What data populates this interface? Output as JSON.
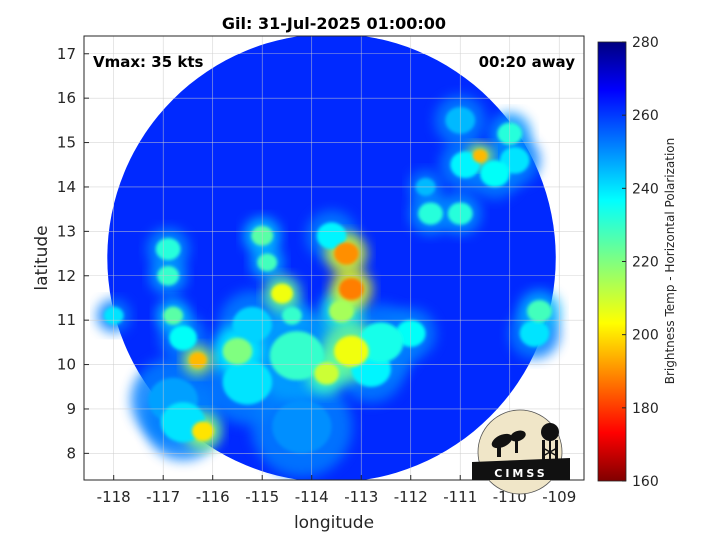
{
  "title": "Gil: 31-Jul-2025 01:00:00",
  "annotations": {
    "vmax": "Vmax: 35 kts",
    "time_away": "00:20 away"
  },
  "axes": {
    "xlabel": "longitude",
    "ylabel": "latitude",
    "xlim": [
      -118.6,
      -108.5
    ],
    "ylim": [
      7.4,
      17.4
    ],
    "xticks": [
      -118,
      -117,
      -116,
      -115,
      -114,
      -113,
      -112,
      -111,
      -110,
      -109
    ],
    "yticks": [
      8,
      9,
      10,
      11,
      12,
      13,
      14,
      15,
      16,
      17
    ],
    "xtick_labels": [
      "-118",
      "-117",
      "-116",
      "-115",
      "-114",
      "-113",
      "-112",
      "-111",
      "-110",
      "-109"
    ],
    "ytick_labels": [
      "8",
      "9",
      "10",
      "11",
      "12",
      "13",
      "14",
      "15",
      "16",
      "17"
    ],
    "grid": true
  },
  "colorbar": {
    "label": "Brightness Temp - Horizontal Polarization",
    "min": 160,
    "max": 280,
    "ticks": [
      160,
      180,
      200,
      220,
      240,
      260,
      280
    ],
    "tick_labels": [
      "160",
      "180",
      "200",
      "220",
      "240",
      "260",
      "280"
    ],
    "colormap": "jet"
  },
  "logo": {
    "text": "CIMSS"
  },
  "colors": {
    "background_tb": "#1a44dd",
    "grid": "#cccccc",
    "axes": "#262626"
  },
  "chart_data": {
    "type": "heatmap",
    "title": "Gil: 31-Jul-2025 01:00:00",
    "xlabel": "longitude",
    "ylabel": "latitude",
    "xlim": [
      -118.6,
      -108.5
    ],
    "ylim": [
      7.4,
      17.4
    ],
    "value_range": [
      160,
      280
    ],
    "swath": {
      "center": [
        -113.6,
        12.4
      ],
      "radius_deg": 5.05
    },
    "background_value": 262,
    "features": [
      {
        "lon": -116.9,
        "lat": 12.6,
        "value": 232,
        "r": 0.25
      },
      {
        "lon": -116.9,
        "lat": 12.0,
        "value": 230,
        "r": 0.22
      },
      {
        "lon": -116.8,
        "lat": 11.1,
        "value": 225,
        "r": 0.2
      },
      {
        "lon": -116.6,
        "lat": 10.6,
        "value": 236,
        "r": 0.28
      },
      {
        "lon": -116.3,
        "lat": 10.1,
        "value": 195,
        "r": 0.18
      },
      {
        "lon": -115.5,
        "lat": 10.3,
        "value": 220,
        "r": 0.3
      },
      {
        "lon": -116.2,
        "lat": 8.5,
        "value": 200,
        "r": 0.22
      },
      {
        "lon": -116.6,
        "lat": 8.7,
        "value": 240,
        "r": 0.45
      },
      {
        "lon": -115.0,
        "lat": 12.9,
        "value": 225,
        "r": 0.22
      },
      {
        "lon": -114.9,
        "lat": 12.3,
        "value": 228,
        "r": 0.2
      },
      {
        "lon": -114.6,
        "lat": 11.6,
        "value": 205,
        "r": 0.22
      },
      {
        "lon": -114.4,
        "lat": 11.1,
        "value": 230,
        "r": 0.2
      },
      {
        "lon": -113.3,
        "lat": 12.5,
        "value": 190,
        "r": 0.25
      },
      {
        "lon": -113.6,
        "lat": 12.9,
        "value": 238,
        "r": 0.3
      },
      {
        "lon": -113.2,
        "lat": 11.7,
        "value": 188,
        "r": 0.25
      },
      {
        "lon": -113.4,
        "lat": 11.2,
        "value": 215,
        "r": 0.25
      },
      {
        "lon": -113.2,
        "lat": 10.3,
        "value": 205,
        "r": 0.35
      },
      {
        "lon": -113.7,
        "lat": 9.8,
        "value": 210,
        "r": 0.25
      },
      {
        "lon": -114.3,
        "lat": 10.2,
        "value": 230,
        "r": 0.55
      },
      {
        "lon": -112.6,
        "lat": 10.5,
        "value": 234,
        "r": 0.45
      },
      {
        "lon": -112.0,
        "lat": 10.7,
        "value": 236,
        "r": 0.3
      },
      {
        "lon": -115.3,
        "lat": 9.6,
        "value": 240,
        "r": 0.5
      },
      {
        "lon": -112.8,
        "lat": 9.9,
        "value": 238,
        "r": 0.4
      },
      {
        "lon": -111.6,
        "lat": 13.4,
        "value": 232,
        "r": 0.25
      },
      {
        "lon": -111.0,
        "lat": 13.4,
        "value": 232,
        "r": 0.25
      },
      {
        "lon": -111.7,
        "lat": 14.0,
        "value": 245,
        "r": 0.2
      },
      {
        "lon": -110.6,
        "lat": 14.7,
        "value": 195,
        "r": 0.15
      },
      {
        "lon": -110.9,
        "lat": 14.5,
        "value": 238,
        "r": 0.3
      },
      {
        "lon": -110.0,
        "lat": 15.2,
        "value": 232,
        "r": 0.25
      },
      {
        "lon": -110.3,
        "lat": 14.3,
        "value": 236,
        "r": 0.3
      },
      {
        "lon": -109.9,
        "lat": 14.6,
        "value": 240,
        "r": 0.3
      },
      {
        "lon": -111.0,
        "lat": 15.5,
        "value": 245,
        "r": 0.3
      },
      {
        "lon": -109.4,
        "lat": 11.2,
        "value": 228,
        "r": 0.25
      },
      {
        "lon": -109.5,
        "lat": 10.7,
        "value": 240,
        "r": 0.3
      },
      {
        "lon": -118.0,
        "lat": 11.1,
        "value": 240,
        "r": 0.2
      },
      {
        "lon": -115.2,
        "lat": 10.9,
        "value": 242,
        "r": 0.4
      },
      {
        "lon": -116.8,
        "lat": 9.2,
        "value": 248,
        "r": 0.5
      },
      {
        "lon": -114.2,
        "lat": 8.6,
        "value": 250,
        "r": 0.6
      }
    ]
  }
}
